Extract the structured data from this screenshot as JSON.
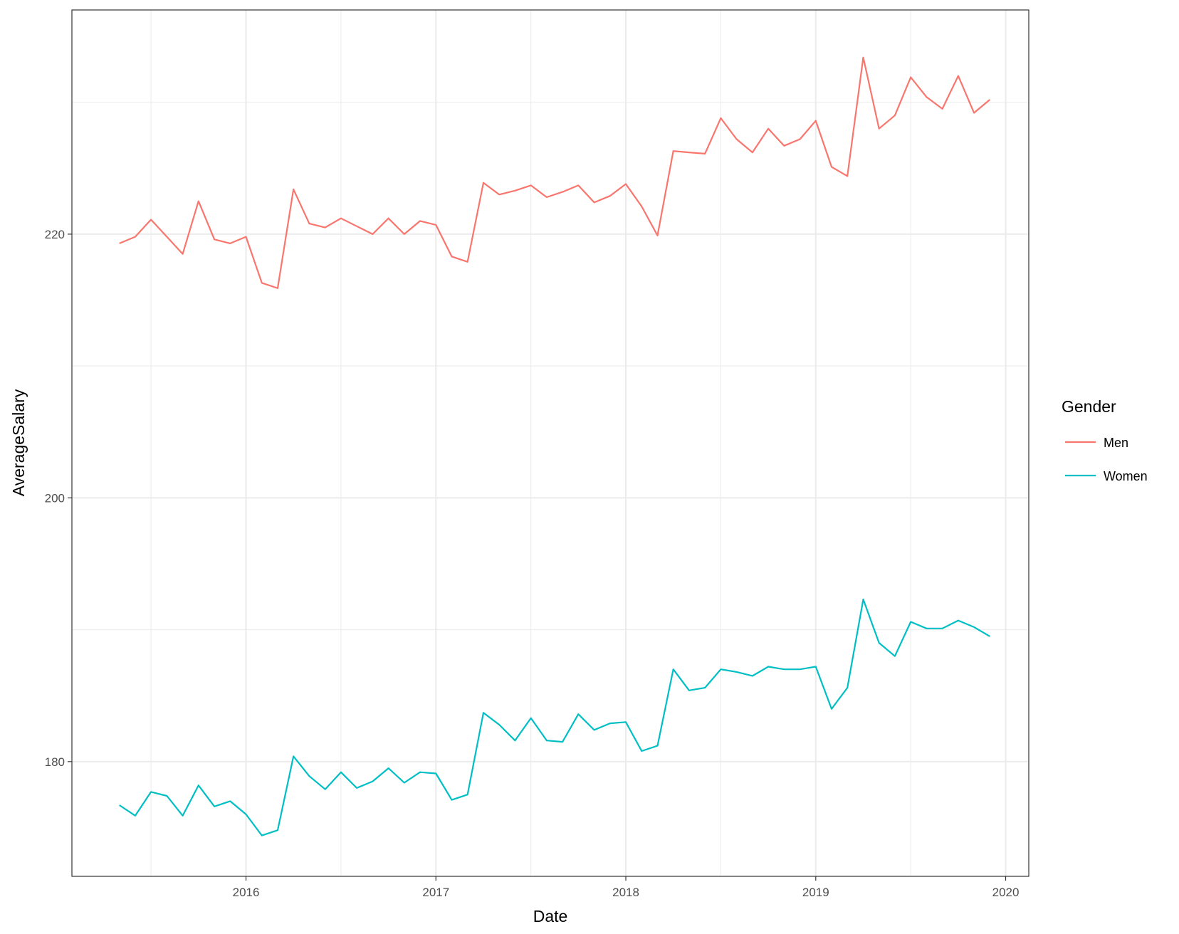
{
  "chart_data": {
    "type": "line",
    "xlabel": "Date",
    "ylabel": "AverageSalary",
    "x_ticks": [
      "2016",
      "2017",
      "2018",
      "2019",
      "2020"
    ],
    "y_ticks": [
      180,
      200,
      220
    ],
    "xlim": [
      "2015-02-01",
      "2020-02-15"
    ],
    "ylim": [
      171.3,
      237.0
    ],
    "grid": true,
    "legend": {
      "title": "Gender",
      "position": "right"
    },
    "x": [
      "2015-05",
      "2015-06",
      "2015-07",
      "2015-08",
      "2015-09",
      "2015-10",
      "2015-11",
      "2015-12",
      "2016-01",
      "2016-02",
      "2016-03",
      "2016-04",
      "2016-05",
      "2016-06",
      "2016-07",
      "2016-08",
      "2016-09",
      "2016-10",
      "2016-11",
      "2016-12",
      "2017-01",
      "2017-02",
      "2017-03",
      "2017-04",
      "2017-05",
      "2017-06",
      "2017-07",
      "2017-08",
      "2017-09",
      "2017-10",
      "2017-11",
      "2017-12",
      "2018-01",
      "2018-02",
      "2018-03",
      "2018-04",
      "2018-05",
      "2018-06",
      "2018-07",
      "2018-08",
      "2018-09",
      "2018-10",
      "2018-11",
      "2018-12",
      "2019-01",
      "2019-02",
      "2019-03",
      "2019-04",
      "2019-05",
      "2019-06",
      "2019-07",
      "2019-08",
      "2019-09",
      "2019-10",
      "2019-11",
      "2019-12"
    ],
    "series": [
      {
        "name": "Men",
        "color": "#F8766D",
        "values": [
          219.3,
          219.8,
          221.1,
          219.8,
          218.5,
          222.5,
          219.6,
          219.3,
          219.8,
          216.3,
          215.9,
          223.4,
          220.8,
          220.5,
          221.2,
          220.6,
          220.0,
          221.2,
          220.0,
          221.0,
          220.7,
          218.3,
          217.9,
          223.9,
          223.0,
          223.3,
          223.7,
          222.8,
          223.2,
          223.7,
          222.4,
          222.9,
          223.8,
          222.1,
          219.9,
          226.3,
          226.2,
          226.1,
          228.8,
          227.2,
          226.2,
          228.0,
          226.7,
          227.2,
          228.6,
          225.1,
          224.4,
          233.4,
          228.0,
          229.0,
          231.9,
          230.4,
          229.5,
          232.0,
          229.2,
          230.2
        ]
      },
      {
        "name": "Women",
        "color": "#00BFC4",
        "values": [
          176.7,
          175.9,
          177.7,
          177.4,
          175.9,
          178.2,
          176.6,
          177.0,
          176.0,
          174.4,
          174.8,
          180.4,
          178.9,
          177.9,
          179.2,
          178.0,
          178.5,
          179.5,
          178.4,
          179.2,
          179.1,
          177.1,
          177.5,
          183.7,
          182.8,
          181.6,
          183.3,
          181.6,
          181.5,
          183.6,
          182.4,
          182.9,
          183.0,
          180.8,
          181.2,
          187.0,
          185.4,
          185.6,
          187.0,
          186.8,
          186.5,
          187.2,
          187.0,
          187.0,
          187.2,
          184.0,
          185.6,
          192.3,
          189.0,
          188.0,
          190.6,
          190.1,
          190.1,
          190.7,
          190.2,
          189.5
        ]
      }
    ]
  }
}
